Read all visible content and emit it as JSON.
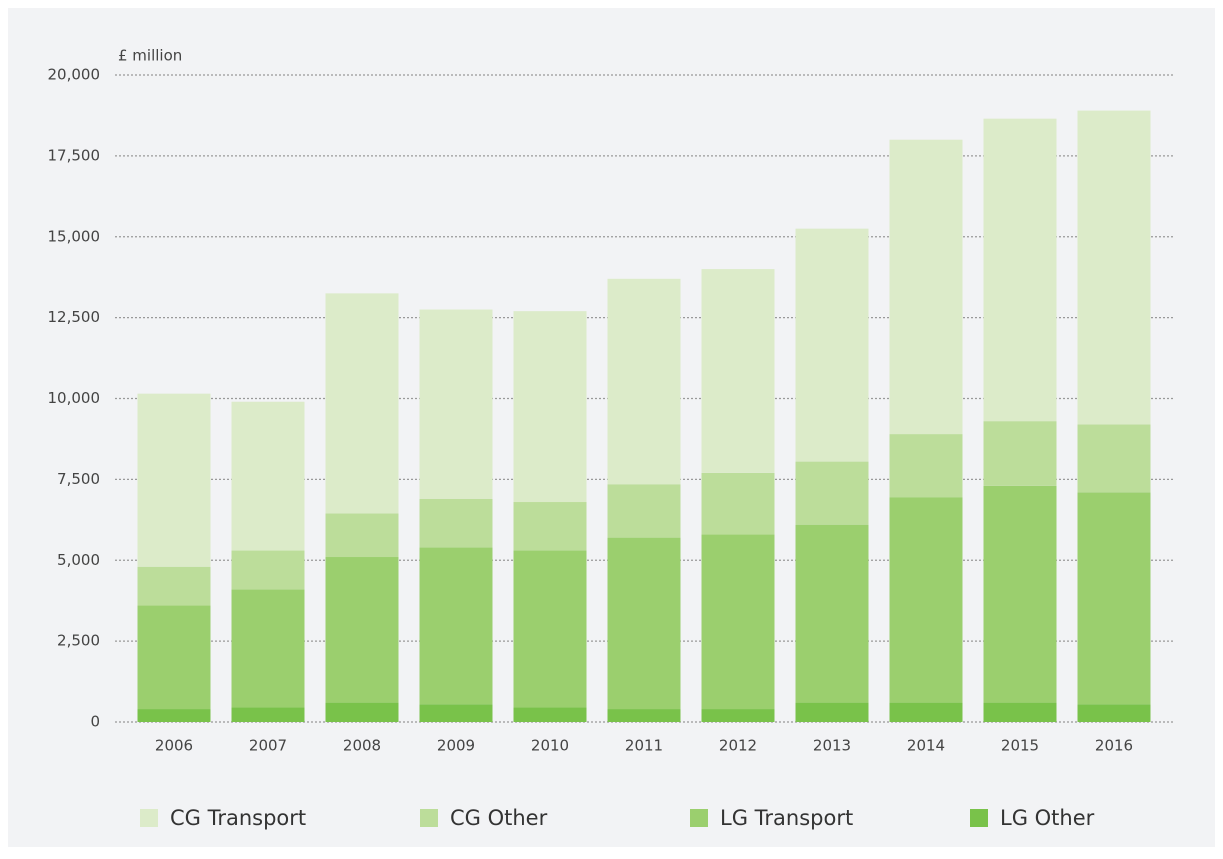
{
  "chart_data": {
    "type": "stacked_bar",
    "y_label": "£ million",
    "categories": [
      "2006",
      "2007",
      "2008",
      "2009",
      "2010",
      "2011",
      "2012",
      "2013",
      "2014",
      "2015",
      "2016"
    ],
    "series": [
      {
        "name": "LG Other",
        "color": "#79c24a",
        "values": [
          400,
          450,
          600,
          550,
          450,
          400,
          400,
          600,
          600,
          600,
          550
        ]
      },
      {
        "name": "LG Transport",
        "color": "#9bcf6e",
        "values": [
          3200,
          3650,
          4500,
          4850,
          4850,
          5300,
          5400,
          5500,
          6350,
          6700,
          6550
        ]
      },
      {
        "name": "CG Other",
        "color": "#bcdd9a",
        "values": [
          1200,
          1200,
          1350,
          1500,
          1500,
          1650,
          1900,
          1950,
          1950,
          2000,
          2100
        ]
      },
      {
        "name": "CG Transport",
        "color": "#dcebc9",
        "values": [
          5350,
          4600,
          6800,
          5850,
          5900,
          6350,
          6300,
          7200,
          9100,
          9350,
          9700
        ]
      }
    ],
    "legend_order": [
      "CG Transport",
      "CG Other",
      "LG Transport",
      "LG Other"
    ],
    "ylim": [
      0,
      20000
    ],
    "yticks": [
      0,
      {
        "value": 2500,
        "label": "2,500"
      },
      {
        "value": 5000,
        "label": "5,000"
      },
      {
        "value": 7500,
        "label": "7,500"
      },
      {
        "value": 10000,
        "label": "10,000"
      },
      {
        "value": 12500,
        "label": "12,500"
      },
      {
        "value": 15000,
        "label": "15,000"
      },
      {
        "value": 17500,
        "label": "17,500"
      },
      {
        "value": 20000,
        "label": "20,000"
      }
    ],
    "grid": true
  }
}
